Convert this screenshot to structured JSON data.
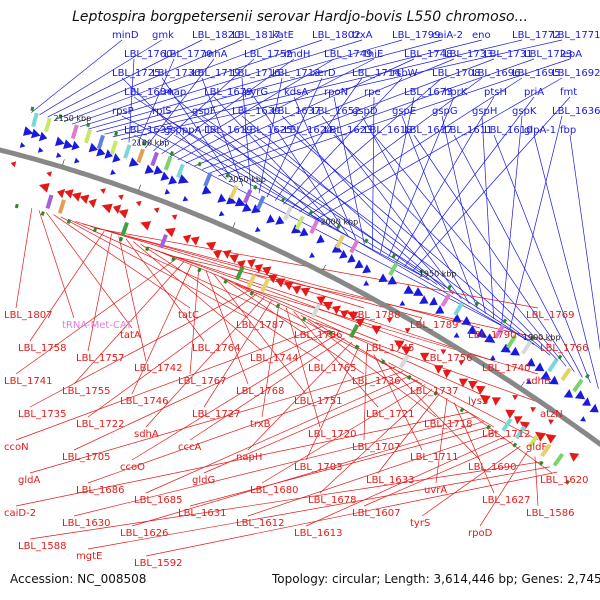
{
  "title": "Leptospira borgpetersenii serovar Hardjo-bovis L550 chromoso...",
  "footer": {
    "accession": "Accession: NC_008508",
    "summary": "Topology: circular; Length: 3,614,446 bp; Genes: 2,745"
  },
  "ruler": [
    "2150 kbp",
    "2100 kbp",
    "2050 kbp",
    "2000 kbp",
    "1950 kbp",
    "1900 kbp"
  ],
  "colors": {
    "forward": "#1a1adf",
    "reverse": "#e41a1a",
    "trna": "#e080e0",
    "backbone": "#888888",
    "rrna_box": "#2a8a2a"
  },
  "forward_labels": [
    "minD",
    "gmk",
    "LBL_1820",
    "LBL_1817",
    "katE",
    "LBL_1802",
    "trxA",
    "LBL_1799",
    "caiA-2",
    "eno",
    "LBL_1772",
    "LBL_1771",
    "LBL_1760",
    "LBL_1770",
    "rnhA",
    "LBL_1752",
    "imdH",
    "LBL_1749",
    "thiE",
    "LBL_1748",
    "LBL_1733",
    "LBL_1731",
    "LBL_1723",
    "lepA",
    "LBL_1725",
    "LBL_1730",
    "LBL_1719",
    "LBL_1716",
    "LBL_1713",
    "xerD",
    "LBL_1714",
    "rsbW",
    "LBL_1708",
    "LBL_1696",
    "LBL_1695",
    "LBL_1692",
    "LBL_1684",
    "map",
    "LBL_1679",
    "pyrG",
    "kdsA",
    "rpoN",
    "rpe",
    "LBL_1673",
    "hprK",
    "ptsH",
    "priA",
    "fmt",
    "rpsP",
    "rplS",
    "gspF",
    "LBL_1639",
    "LBL_1637",
    "LBL_1652",
    "gspD",
    "gspE",
    "gspG",
    "gspH",
    "gspK",
    "LBL_1636",
    "LBL_1635",
    "gspppA-1",
    "LBL_1619",
    "LBL_1625",
    "LBL_1624",
    "LBL_1623",
    "LBL_1618",
    "LBL_1617",
    "LBL_1611",
    "LBL_1610",
    "glpA-1",
    "fbp"
  ],
  "reverse_labels": [
    "LBL_1807",
    "tRNA-Met-CAT",
    "tatA",
    "tatC",
    "LBL_1787",
    "LBL_1786",
    "LBL_1788",
    "LBL_1789",
    "LBL_1790",
    "LBL_1769",
    "LBL_1758",
    "LBL_1757",
    "LBL_1742",
    "LBL_1764",
    "LBL_1744",
    "LBL_1765",
    "LBL_1745",
    "LBL_1756",
    "LBL_1740",
    "LBL_1766",
    "LBL_1741",
    "LBL_1755",
    "LBL_1746",
    "LBL_1767",
    "LBL_1768",
    "LBL_1751",
    "LBL_1736",
    "LBL_1737",
    "lysS",
    "sdhB",
    "LBL_1735",
    "LBL_1722",
    "sdhA",
    "LBL_1727",
    "trxB",
    "LBL_1720",
    "LBL_1721",
    "LBL_1718",
    "LBL_1712",
    "atzN",
    "ccoN",
    "LBL_1705",
    "ccoO",
    "cccA",
    "napH",
    "LBL_1703",
    "LBL_1707",
    "LBL_1711",
    "LBL_1690",
    "gldF",
    "gldA",
    "LBL_1686",
    "LBL_1685",
    "gldG",
    "LBL_1680",
    "LBL_1678",
    "LBL_1633",
    "uvrA",
    "LBL_1627",
    "LBL_1620",
    "caiD-2",
    "LBL_1630",
    "LBL_1626",
    "LBL_1631",
    "LBL_1612",
    "LBL_1613",
    "LBL_1607",
    "tyrS",
    "rpoD",
    "LBL_1586",
    "LBL_1588",
    "mgtE",
    "LBL_1592"
  ]
}
